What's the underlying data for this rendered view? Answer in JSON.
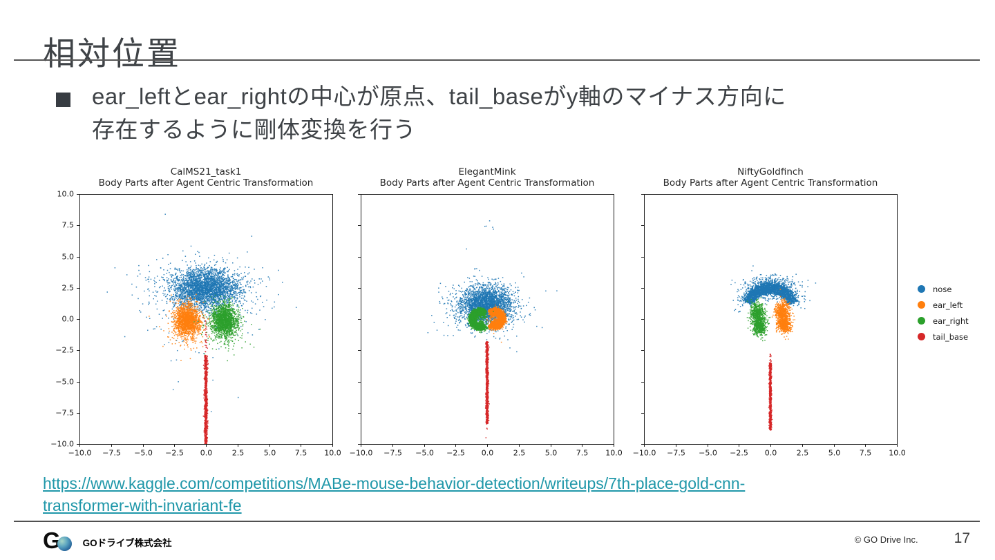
{
  "slide": {
    "title": "相対位置",
    "bullet": {
      "line1": "ear_leftとear_rightの中心が原点、tail_baseがy軸のマイナス方向に",
      "line2": "存在するように剛体変換を行う"
    },
    "link": {
      "line1": "https://www.kaggle.com/competitions/MABe-mouse-behavior-detection/writeups/7th-place-gold-cnn-",
      "line2": "transformer-with-invariant-fe",
      "color": "#1f97a9"
    },
    "footer": {
      "logo_g": "G",
      "company": "GOドライブ株式会社",
      "copyright": "© GO Drive Inc.",
      "page_number": "17"
    }
  },
  "legend": {
    "position": "right-of-third-plot",
    "items": [
      {
        "label": "nose",
        "color": "#1f77b4"
      },
      {
        "label": "ear_left",
        "color": "#ff7f0e"
      },
      {
        "label": "ear_right",
        "color": "#2ca02c"
      },
      {
        "label": "tail_base",
        "color": "#d62728"
      }
    ]
  },
  "chart_data": [
    {
      "type": "scatter",
      "title_line1": "CalMS21_task1",
      "title_line2": "Body Parts after Agent Centric Transformation",
      "xlabel": "",
      "ylabel": "",
      "xlim": [
        -10,
        10
      ],
      "ylim": [
        -10,
        10
      ],
      "xticks": [
        "−10.0",
        "−7.5",
        "−5.0",
        "−2.5",
        "0.0",
        "2.5",
        "5.0",
        "7.5",
        "10.0"
      ],
      "yticks": [
        "10.0",
        "7.5",
        "5.0",
        "2.5",
        "0.0",
        "−2.5",
        "−5.0",
        "−7.5",
        "−10.0"
      ],
      "show_ytick_labels": true,
      "grid": false,
      "series": [
        {
          "name": "nose",
          "color": "#1f77b4",
          "clusters": [
            {
              "shape": "gauss",
              "cx": -0.1,
              "cy": 2.45,
              "sx": 1.3,
              "sy": 0.75,
              "n": 2600
            },
            {
              "shape": "gauss",
              "cx": -0.1,
              "cy": 2.3,
              "sx": 2.1,
              "sy": 1.15,
              "n": 550
            },
            {
              "shape": "gauss",
              "cx": 0,
              "cy": 1.6,
              "sx": 3.2,
              "sy": 2.2,
              "n": 120
            },
            {
              "shape": "gauss",
              "cx": 0,
              "cy": -3.5,
              "sx": 3.0,
              "sy": 2.0,
              "n": 16
            },
            {
              "shape": "gauss",
              "cx": -4.5,
              "cy": 2.0,
              "sx": 1.2,
              "sy": 1.2,
              "n": 10
            }
          ]
        },
        {
          "name": "ear_left",
          "color": "#ff7f0e",
          "clusters": [
            {
              "shape": "gauss",
              "cx": -1.45,
              "cy": -0.1,
              "sx": 0.48,
              "sy": 0.62,
              "n": 1500
            },
            {
              "shape": "gauss",
              "cx": -1.5,
              "cy": -0.45,
              "sx": 0.75,
              "sy": 0.95,
              "n": 250
            },
            {
              "shape": "gauss",
              "cx": -2.0,
              "cy": -1.0,
              "sx": 1.3,
              "sy": 0.9,
              "n": 25
            }
          ]
        },
        {
          "name": "ear_right",
          "color": "#2ca02c",
          "clusters": [
            {
              "shape": "gauss",
              "cx": 1.45,
              "cy": -0.1,
              "sx": 0.48,
              "sy": 0.62,
              "n": 1500
            },
            {
              "shape": "gauss",
              "cx": 1.5,
              "cy": -0.45,
              "sx": 0.75,
              "sy": 0.95,
              "n": 250
            },
            {
              "shape": "gauss",
              "cx": 2.0,
              "cy": -1.0,
              "sx": 1.3,
              "sy": 0.9,
              "n": 25
            }
          ]
        },
        {
          "name": "tail_base",
          "color": "#d62728",
          "clusters": [
            {
              "shape": "vline",
              "x": 0,
              "y1": -2.9,
              "y2": -10,
              "jx": 0.06,
              "n": 900
            },
            {
              "shape": "vline",
              "x": 0,
              "y1": -0.05,
              "y2": -2.9,
              "jx": 0.05,
              "n": 26
            }
          ]
        }
      ]
    },
    {
      "type": "scatter",
      "title_line1": "ElegantMink",
      "title_line2": "Body Parts after Agent Centric Transformation",
      "xlabel": "",
      "ylabel": "",
      "xlim": [
        -10,
        10
      ],
      "ylim": [
        -10,
        10
      ],
      "xticks": [
        "−10.0",
        "−7.5",
        "−5.0",
        "−2.5",
        "0.0",
        "2.5",
        "5.0",
        "7.5",
        "10.0"
      ],
      "yticks": [
        "10.0",
        "7.5",
        "5.0",
        "2.5",
        "0.0",
        "−2.5",
        "−5.0",
        "−7.5",
        "−10.0"
      ],
      "show_ytick_labels": false,
      "grid": false,
      "series": [
        {
          "name": "nose",
          "color": "#1f77b4",
          "clusters": [
            {
              "shape": "gauss",
              "cx": -0.05,
              "cy": 1.1,
              "sx": 1.0,
              "sy": 0.72,
              "n": 2600
            },
            {
              "shape": "gauss",
              "cx": -0.05,
              "cy": 0.95,
              "sx": 1.6,
              "sy": 1.1,
              "n": 450
            },
            {
              "shape": "gauss",
              "cx": 0.25,
              "cy": 7.7,
              "sx": 0.3,
              "sy": 0.45,
              "n": 5
            },
            {
              "shape": "gauss",
              "cx": -1.6,
              "cy": 5.6,
              "sx": 0.1,
              "sy": 0.1,
              "n": 1
            },
            {
              "shape": "gauss",
              "cx": -0.8,
              "cy": 3.9,
              "sx": 0.25,
              "sy": 0.3,
              "n": 3
            },
            {
              "shape": "gauss",
              "cx": -3.2,
              "cy": 0.3,
              "sx": 0.1,
              "sy": 0.1,
              "n": 1
            },
            {
              "shape": "gauss",
              "cx": 3.3,
              "cy": 0.4,
              "sx": 0.15,
              "sy": 0.15,
              "n": 2
            }
          ]
        },
        {
          "name": "ear_left",
          "color": "#ff7f0e",
          "clusters": [
            {
              "shape": "arc",
              "cx": 0.62,
              "cy": 0.02,
              "r": 0.58,
              "thick": 0.52,
              "a1": -130,
              "a2": 130,
              "n": 1700
            },
            {
              "shape": "gauss",
              "cx": 0.65,
              "cy": 0.05,
              "sx": 0.33,
              "sy": 0.42,
              "n": 150
            },
            {
              "shape": "gauss",
              "cx": 1.15,
              "cy": -1.85,
              "sx": 0.04,
              "sy": 0.04,
              "n": 1
            }
          ]
        },
        {
          "name": "ear_right",
          "color": "#2ca02c",
          "clusters": [
            {
              "shape": "arc",
              "cx": -0.58,
              "cy": -0.02,
              "r": 0.6,
              "thick": 0.52,
              "a1": 50,
              "a2": 310,
              "n": 1700
            },
            {
              "shape": "gauss",
              "cx": -0.6,
              "cy": -0.05,
              "sx": 0.35,
              "sy": 0.45,
              "n": 150
            }
          ]
        },
        {
          "name": "tail_base",
          "color": "#d62728",
          "clusters": [
            {
              "shape": "vline",
              "x": 0,
              "y1": -1.8,
              "y2": -8.4,
              "jx": 0.05,
              "n": 900
            },
            {
              "shape": "gauss",
              "cx": 0,
              "cy": -8.85,
              "sx": 0.04,
              "sy": 0.08,
              "n": 2
            },
            {
              "shape": "gauss",
              "cx": -0.07,
              "cy": -9.5,
              "sx": 0.02,
              "sy": 0.04,
              "n": 1
            }
          ]
        }
      ]
    },
    {
      "type": "scatter",
      "title_line1": "NiftyGoldfinch",
      "title_line2": "Body Parts after Agent Centric Transformation",
      "xlabel": "",
      "ylabel": "",
      "xlim": [
        -10,
        10
      ],
      "ylim": [
        -10,
        10
      ],
      "xticks": [
        "−10.0",
        "−7.5",
        "−5.0",
        "−2.5",
        "0.0",
        "2.5",
        "5.0",
        "7.5",
        "10.0"
      ],
      "yticks": [
        "10.0",
        "7.5",
        "5.0",
        "2.5",
        "0.0",
        "−2.5",
        "−5.0",
        "−7.5",
        "−10.0"
      ],
      "show_ytick_labels": false,
      "grid": false,
      "series": [
        {
          "name": "nose",
          "color": "#1f77b4",
          "clusters": [
            {
              "shape": "arc",
              "cx": 0,
              "cy": 0.5,
              "r": 1.95,
              "thick": 0.75,
              "a1": 25,
              "a2": 155,
              "n": 2200
            },
            {
              "shape": "gauss",
              "cx": 0,
              "cy": 2.5,
              "sx": 1.0,
              "sy": 0.45,
              "n": 700
            },
            {
              "shape": "arc",
              "cx": 0,
              "cy": 0.5,
              "r": 2.35,
              "thick": 0.45,
              "a1": 20,
              "a2": 160,
              "n": 160
            },
            {
              "shape": "gauss",
              "cx": -2.4,
              "cy": 1.3,
              "sx": 0.25,
              "sy": 0.4,
              "n": 18
            },
            {
              "shape": "gauss",
              "cx": 2.4,
              "cy": 1.3,
              "sx": 0.25,
              "sy": 0.4,
              "n": 18
            }
          ]
        },
        {
          "name": "ear_left",
          "color": "#ff7f0e",
          "clusters": [
            {
              "shape": "gauss",
              "cx": 0.95,
              "cy": 0.6,
              "sx": 0.28,
              "sy": 0.4,
              "n": 550
            },
            {
              "shape": "gauss",
              "cx": 1.1,
              "cy": -0.4,
              "sx": 0.28,
              "sy": 0.36,
              "n": 550
            }
          ]
        },
        {
          "name": "ear_right",
          "color": "#2ca02c",
          "clusters": [
            {
              "shape": "gauss",
              "cx": -1.05,
              "cy": 0.5,
              "sx": 0.26,
              "sy": 0.38,
              "n": 550
            },
            {
              "shape": "gauss",
              "cx": -0.85,
              "cy": -0.55,
              "sx": 0.26,
              "sy": 0.36,
              "n": 550
            }
          ]
        },
        {
          "name": "tail_base",
          "color": "#d62728",
          "clusters": [
            {
              "shape": "vline",
              "x": 0,
              "y1": -3.5,
              "y2": -8.9,
              "jx": 0.045,
              "n": 800
            },
            {
              "shape": "vline",
              "x": 0,
              "y1": -2.75,
              "y2": -3.5,
              "jx": 0.03,
              "n": 10
            }
          ]
        }
      ]
    }
  ]
}
